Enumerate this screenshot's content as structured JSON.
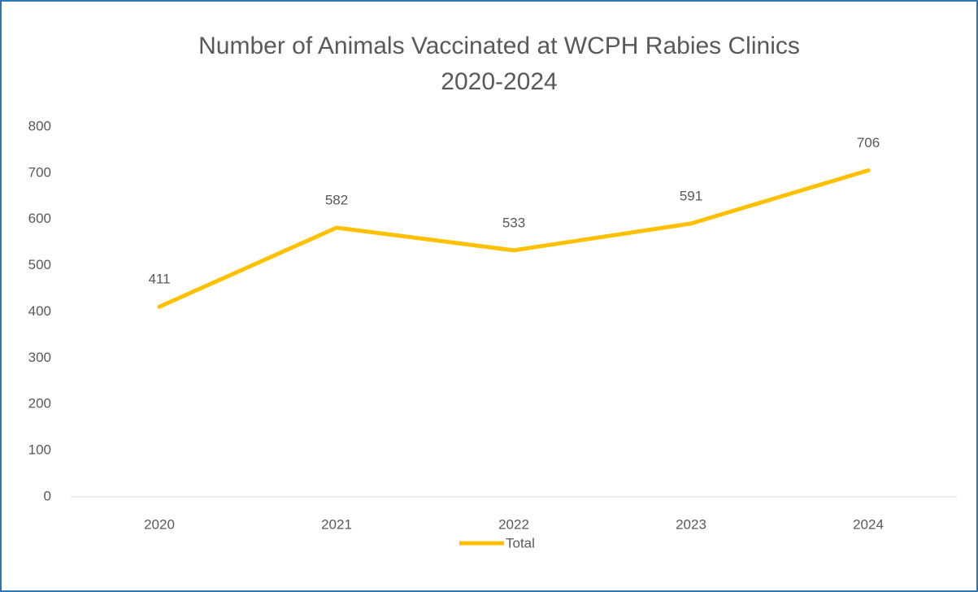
{
  "chart_data": {
    "type": "line",
    "title": [
      "Number of Animals Vaccinated at WCPH Rabies Clinics",
      "2020-2024"
    ],
    "categories": [
      "2020",
      "2021",
      "2022",
      "2023",
      "2024"
    ],
    "series": [
      {
        "name": "Total",
        "color": "#ffc000",
        "values": [
          411,
          582,
          533,
          591,
          706
        ]
      }
    ],
    "ylim": [
      0,
      800
    ],
    "yticks": [
      0,
      100,
      200,
      300,
      400,
      500,
      600,
      700,
      800
    ],
    "grid": false,
    "data_labels": true,
    "legend": "bottom"
  }
}
